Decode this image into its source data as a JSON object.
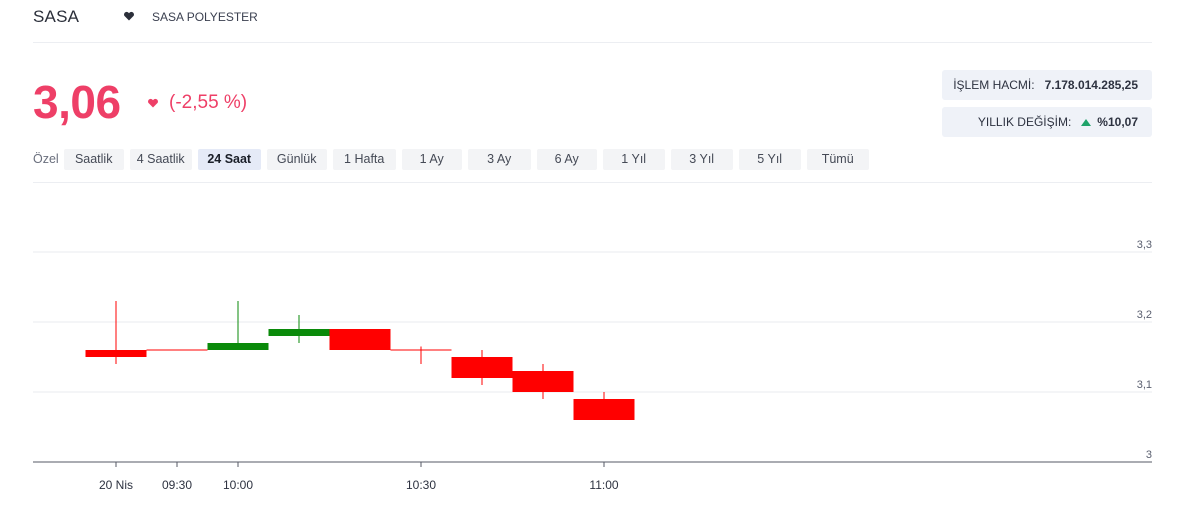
{
  "header": {
    "ticker": "SASA",
    "company": "SASA POLYESTER",
    "icon": "heart-icon"
  },
  "quote": {
    "price": "3,06",
    "change": "(-2,55 %)",
    "color": "#ee3f67"
  },
  "stats": {
    "volume_label": "İŞLEM HACMİ:",
    "volume_value": "7.178.014.285,25",
    "yearly_label": "YILLIK DEĞİŞİM:",
    "yearly_value": "%10,07",
    "yearly_icon": "triangle-up-icon"
  },
  "ranges": {
    "label": "Özel",
    "items": [
      "Saatlik",
      "4 Saatlik",
      "24 Saat",
      "Günlük",
      "1 Hafta",
      "1 Ay",
      "3 Ay",
      "6 Ay",
      "1 Yıl",
      "3 Yıl",
      "5 Yıl",
      "Tümü"
    ],
    "active": "24 Saat"
  },
  "chart_data": {
    "type": "candlestick",
    "y_ticks": [
      "3,3",
      "3,2",
      "3,1",
      "3"
    ],
    "y_tick_values": [
      3.3,
      3.2,
      3.1,
      3.0
    ],
    "ylim": [
      3.0,
      3.3
    ],
    "x_ticks": [
      "20 Nis",
      "09:30",
      "10:00",
      "10:30",
      "11:00"
    ],
    "x_tick_slots": [
      0,
      1,
      2,
      5,
      8
    ],
    "grid": true,
    "up_color": "#0a8a0a",
    "down_color": "#ff0000",
    "candles": [
      {
        "o": 3.16,
        "h": 3.23,
        "l": 3.14,
        "c": 3.15
      },
      {
        "o": 3.16,
        "h": 3.16,
        "l": 3.16,
        "c": 3.16
      },
      {
        "o": 3.16,
        "h": 3.23,
        "l": 3.16,
        "c": 3.17
      },
      {
        "o": 3.18,
        "h": 3.21,
        "l": 3.17,
        "c": 3.19
      },
      {
        "o": 3.19,
        "h": 3.19,
        "l": 3.16,
        "c": 3.16
      },
      {
        "o": 3.16,
        "h": 3.165,
        "l": 3.14,
        "c": 3.16
      },
      {
        "o": 3.15,
        "h": 3.16,
        "l": 3.11,
        "c": 3.12
      },
      {
        "o": 3.13,
        "h": 3.14,
        "l": 3.09,
        "c": 3.1
      },
      {
        "o": 3.09,
        "h": 3.1,
        "l": 3.06,
        "c": 3.06
      }
    ]
  }
}
